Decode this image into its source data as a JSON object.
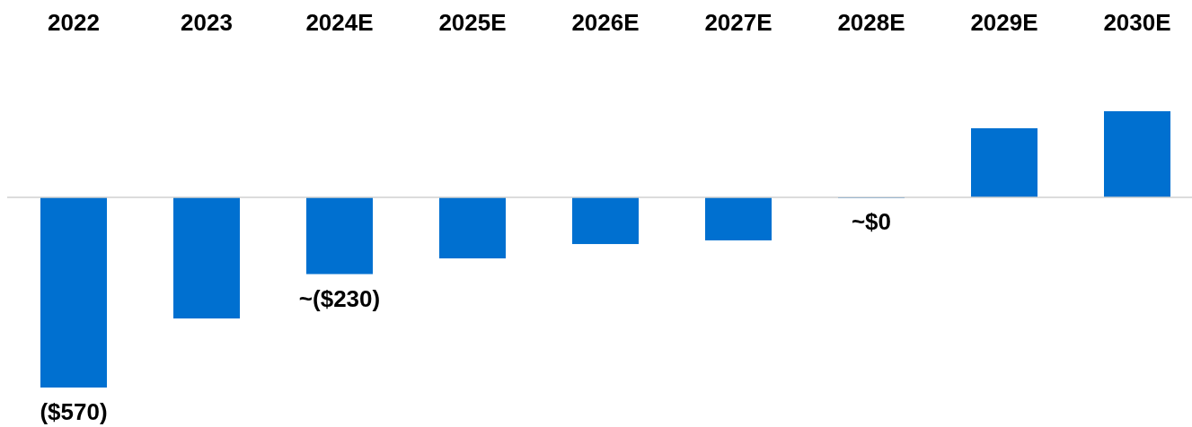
{
  "chart_data": {
    "type": "bar",
    "categories": [
      "2022",
      "2023",
      "2024E",
      "2025E",
      "2026E",
      "2027E",
      "2028E",
      "2029E",
      "2030E"
    ],
    "values": [
      -570,
      -363,
      -230,
      -183,
      -140,
      -129,
      0,
      207,
      258
    ],
    "value_labels": [
      "($570)",
      null,
      "~($230)",
      null,
      null,
      null,
      "~$0",
      null,
      null
    ],
    "color": "#0070d0"
  }
}
